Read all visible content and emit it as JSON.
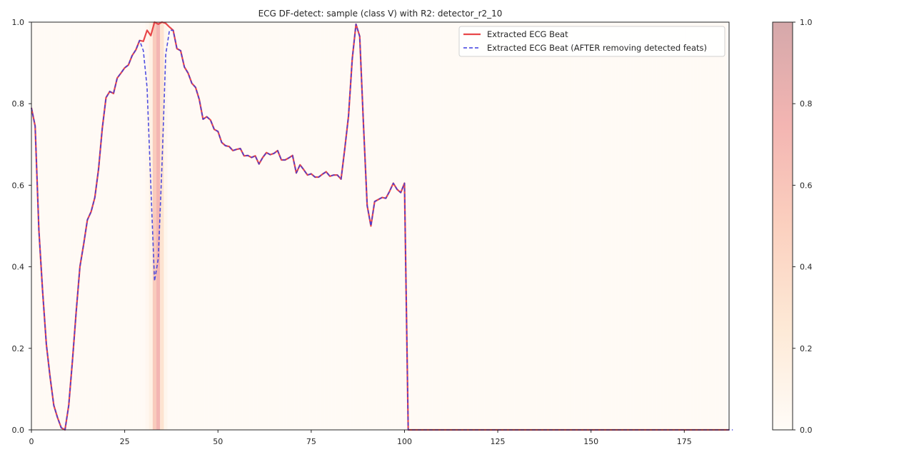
{
  "chart_data": {
    "type": "line",
    "title": "ECG DF-detect: sample (class V) with R2: detector_r2_10",
    "xlabel": "",
    "ylabel": "",
    "xlim": [
      0,
      187
    ],
    "ylim": [
      0,
      1
    ],
    "x_ticks": [
      0,
      25,
      50,
      75,
      100,
      125,
      150,
      175
    ],
    "y_ticks": [
      0.0,
      0.2,
      0.4,
      0.6,
      0.8,
      1.0
    ],
    "grid": false,
    "legend_position": "top-right",
    "series": [
      {
        "name": "Extracted ECG Beat",
        "color": "#e8474a",
        "style": "solid",
        "x_start": 0,
        "values": [
          0.79,
          0.745,
          0.49,
          0.34,
          0.21,
          0.13,
          0.06,
          0.03,
          0.005,
          0.0,
          0.06,
          0.17,
          0.29,
          0.4,
          0.455,
          0.515,
          0.535,
          0.57,
          0.64,
          0.74,
          0.815,
          0.83,
          0.825,
          0.863,
          0.875,
          0.888,
          0.895,
          0.918,
          0.932,
          0.955,
          0.953,
          0.98,
          0.967,
          1.0,
          0.995,
          1.0,
          0.997,
          0.988,
          0.98,
          0.935,
          0.93,
          0.89,
          0.875,
          0.85,
          0.84,
          0.81,
          0.762,
          0.768,
          0.76,
          0.737,
          0.732,
          0.705,
          0.697,
          0.695,
          0.685,
          0.688,
          0.69,
          0.672,
          0.673,
          0.668,
          0.672,
          0.652,
          0.668,
          0.68,
          0.675,
          0.678,
          0.685,
          0.662,
          0.662,
          0.667,
          0.673,
          0.63,
          0.65,
          0.638,
          0.625,
          0.628,
          0.62,
          0.62,
          0.627,
          0.633,
          0.622,
          0.625,
          0.625,
          0.615,
          0.69,
          0.77,
          0.91,
          0.995,
          0.965,
          0.75,
          0.55,
          0.5,
          0.56,
          0.565,
          0.57,
          0.568,
          0.585,
          0.605,
          0.59,
          0.582,
          0.605,
          0.0,
          0.0,
          0.0,
          0.0,
          0.0,
          0.0,
          0.0,
          0.0,
          0.0,
          0.0,
          0.0,
          0.0,
          0.0,
          0.0,
          0.0,
          0.0,
          0.0,
          0.0,
          0.0,
          0.0,
          0.0,
          0.0,
          0.0,
          0.0,
          0.0,
          0.0,
          0.0,
          0.0,
          0.0,
          0.0,
          0.0,
          0.0,
          0.0,
          0.0,
          0.0,
          0.0,
          0.0,
          0.0,
          0.0,
          0.0,
          0.0,
          0.0,
          0.0,
          0.0,
          0.0,
          0.0,
          0.0,
          0.0,
          0.0,
          0.0,
          0.0,
          0.0,
          0.0,
          0.0,
          0.0,
          0.0,
          0.0,
          0.0,
          0.0,
          0.0,
          0.0,
          0.0,
          0.0,
          0.0,
          0.0,
          0.0,
          0.0,
          0.0,
          0.0,
          0.0,
          0.0,
          0.0,
          0.0,
          0.0,
          0.0,
          0.0,
          0.0,
          0.0,
          0.0,
          0.0,
          0.0,
          0.0,
          0.0,
          0.0,
          0.0,
          0.0,
          0.0
        ]
      },
      {
        "name": "Extracted ECG Beat (AFTER removing detected feats)",
        "color": "#3b3bdf",
        "style": "dashed",
        "x_start": 0,
        "values": [
          0.79,
          0.745,
          0.49,
          0.34,
          0.21,
          0.13,
          0.06,
          0.03,
          0.005,
          0.0,
          0.06,
          0.17,
          0.29,
          0.4,
          0.455,
          0.515,
          0.535,
          0.57,
          0.64,
          0.74,
          0.815,
          0.83,
          0.825,
          0.863,
          0.875,
          0.888,
          0.895,
          0.918,
          0.932,
          0.955,
          0.93,
          0.84,
          0.6,
          0.365,
          0.42,
          0.65,
          0.92,
          0.98,
          0.98,
          0.935,
          0.93,
          0.89,
          0.875,
          0.85,
          0.84,
          0.81,
          0.762,
          0.768,
          0.76,
          0.737,
          0.732,
          0.705,
          0.697,
          0.695,
          0.685,
          0.688,
          0.69,
          0.672,
          0.673,
          0.668,
          0.672,
          0.652,
          0.668,
          0.68,
          0.675,
          0.678,
          0.685,
          0.662,
          0.662,
          0.667,
          0.673,
          0.63,
          0.65,
          0.638,
          0.625,
          0.628,
          0.62,
          0.62,
          0.627,
          0.633,
          0.622,
          0.625,
          0.625,
          0.615,
          0.69,
          0.77,
          0.91,
          0.995,
          0.965,
          0.75,
          0.55,
          0.5,
          0.56,
          0.565,
          0.57,
          0.568,
          0.585,
          0.605,
          0.59,
          0.582,
          0.605,
          0.0,
          0.0,
          0.0,
          0.0,
          0.0,
          0.0,
          0.0,
          0.0,
          0.0,
          0.0,
          0.0,
          0.0,
          0.0,
          0.0,
          0.0,
          0.0,
          0.0,
          0.0,
          0.0,
          0.0,
          0.0,
          0.0,
          0.0,
          0.0,
          0.0,
          0.0,
          0.0,
          0.0,
          0.0,
          0.0,
          0.0,
          0.0,
          0.0,
          0.0,
          0.0,
          0.0,
          0.0,
          0.0,
          0.0,
          0.0,
          0.0,
          0.0,
          0.0,
          0.0,
          0.0,
          0.0,
          0.0,
          0.0,
          0.0,
          0.0,
          0.0,
          0.0,
          0.0,
          0.0,
          0.0,
          0.0,
          0.0,
          0.0,
          0.0,
          0.0,
          0.0,
          0.0,
          0.0,
          0.0,
          0.0,
          0.0,
          0.0,
          0.0,
          0.0,
          0.0,
          0.0,
          0.0,
          0.0,
          0.0,
          0.0,
          0.0,
          0.0,
          0.0,
          0.0,
          0.0,
          0.0,
          0.0,
          0.0,
          0.0,
          0.0,
          0.0,
          0.0,
          0.0
        ]
      }
    ],
    "heatmap": {
      "description_free": true,
      "baseline": 0.02,
      "peaks": [
        {
          "x": 32,
          "value": 0.15
        },
        {
          "x": 33,
          "value": 0.55
        },
        {
          "x": 34,
          "value": 0.75
        },
        {
          "x": 35,
          "value": 0.3
        },
        {
          "x": 31,
          "value": 0.06
        },
        {
          "x": 36,
          "value": 0.08
        }
      ],
      "colormap": [
        "#fffcf8",
        "#fde9d6",
        "#fbd0bf",
        "#f3b5b2",
        "#d5a8aa"
      ]
    },
    "colorbar": {
      "ticks": [
        0.0,
        0.2,
        0.4,
        0.6,
        0.8,
        1.0
      ],
      "range": [
        0,
        1
      ]
    }
  }
}
